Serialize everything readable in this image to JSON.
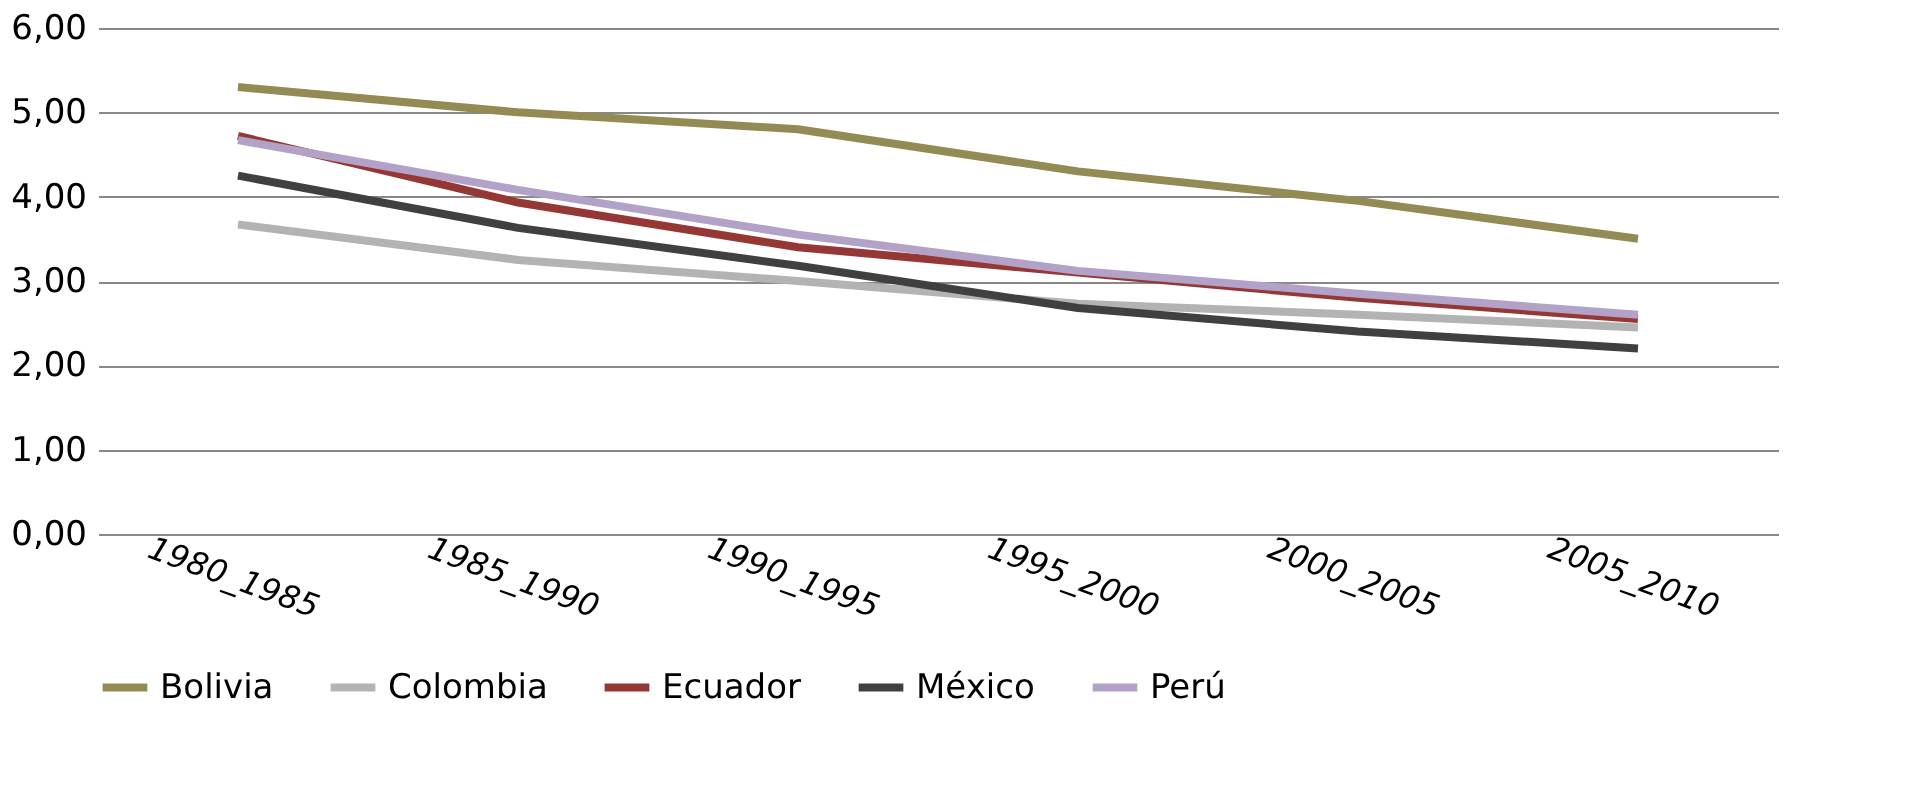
{
  "chart_data": {
    "type": "line",
    "categories": [
      "1980_1985",
      "1985_1990",
      "1990_1995",
      "1995_2000",
      "2000_2005",
      "2005_2010"
    ],
    "series": [
      {
        "name": "Bolivia",
        "color": "#948a54",
        "values": [
          5.3,
          5.0,
          4.8,
          4.3,
          3.95,
          3.5
        ]
      },
      {
        "name": "Colombia",
        "color": "#b3b3b3",
        "values": [
          3.67,
          3.25,
          3.0,
          2.73,
          2.6,
          2.45
        ]
      },
      {
        "name": "Ecuador",
        "color": "#953735",
        "values": [
          4.72,
          3.93,
          3.4,
          3.1,
          2.8,
          2.55
        ]
      },
      {
        "name": "México",
        "color": "#404040",
        "values": [
          4.25,
          3.63,
          3.18,
          2.68,
          2.4,
          2.2
        ]
      },
      {
        "name": "Perú",
        "color": "#b3a2c7",
        "values": [
          4.67,
          4.08,
          3.55,
          3.12,
          2.85,
          2.6
        ]
      }
    ],
    "ylim": [
      0,
      6
    ],
    "yticks": [
      {
        "value": 0,
        "label": "0,00"
      },
      {
        "value": 1,
        "label": "1,00"
      },
      {
        "value": 2,
        "label": "2,00"
      },
      {
        "value": 3,
        "label": "3,00"
      },
      {
        "value": 4,
        "label": "4,00"
      },
      {
        "value": 5,
        "label": "5,00"
      },
      {
        "value": 6,
        "label": "6,00"
      }
    ],
    "grid": "y",
    "legend": "bottom",
    "marker": "none",
    "line_style": "solid"
  }
}
